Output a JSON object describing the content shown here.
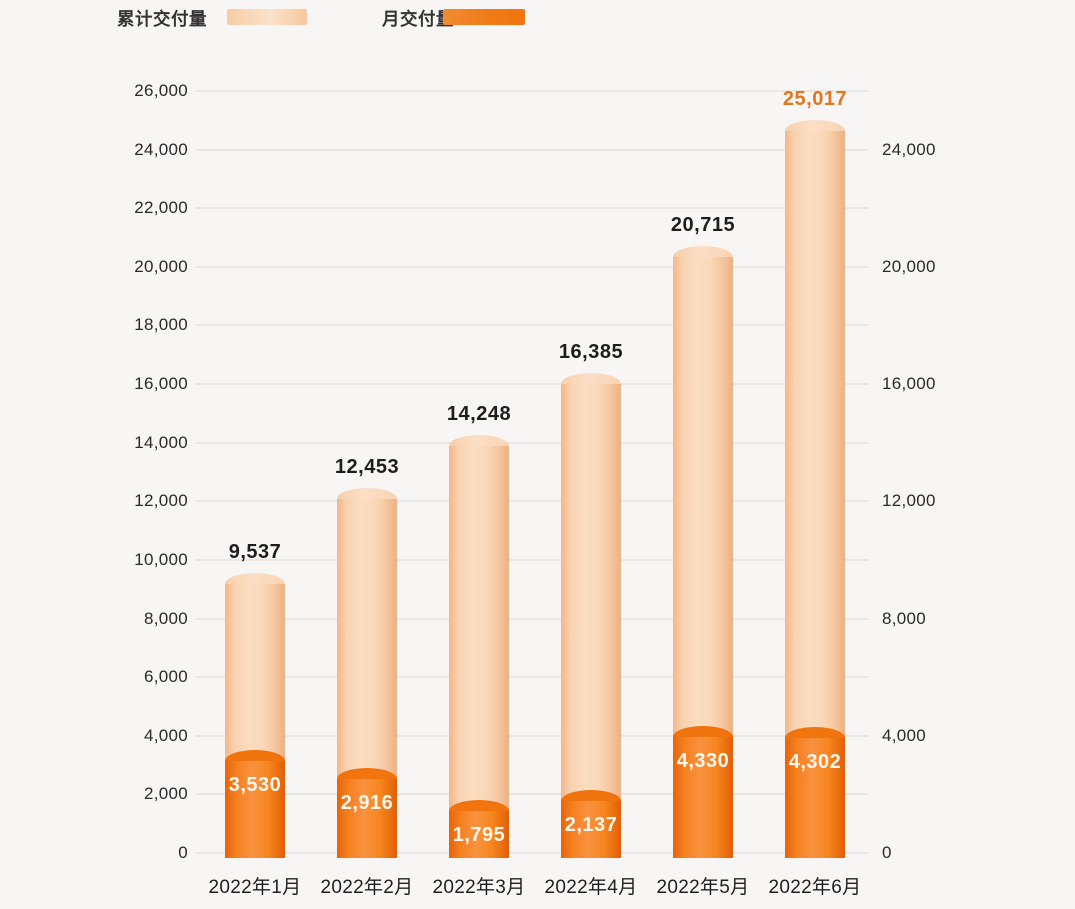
{
  "legend": {
    "items": [
      {
        "label": "累计交付量",
        "swatch": "peach"
      },
      {
        "label": "月交付量",
        "swatch": "orange"
      }
    ]
  },
  "colors": {
    "background": "#f7f6f4",
    "grid_line": "#eae7e3",
    "axis_text": "#2a2a2a",
    "value_label_text": "#1d1d1d",
    "highlight_value_text": "#e2761d",
    "monthly_label_text": "#fdf7ee",
    "cum_edge": "#efb88c",
    "cum_mid": "#fbddc0",
    "cum_cap": "#fcdfc6",
    "mon_edge": "#e6650a",
    "mon_mid": "#f9913f",
    "mon_cap": "#f2740e"
  },
  "chart_data": {
    "type": "bar",
    "title": "",
    "categories": [
      "2022年1月",
      "2022年2月",
      "2022年3月",
      "2022年4月",
      "2022年5月",
      "2022年6月"
    ],
    "series": [
      {
        "name": "累计交付量",
        "values": [
          9537,
          12453,
          14248,
          16385,
          20715,
          25017
        ],
        "labels": [
          "9,537",
          "12,453",
          "14,248",
          "16,385",
          "20,715",
          "25,017"
        ]
      },
      {
        "name": "月交付量",
        "values": [
          3530,
          2916,
          1795,
          2137,
          4330,
          4302
        ],
        "labels": [
          "3,530",
          "2,916",
          "1,795",
          "2,137",
          "4,330",
          "4,302"
        ]
      }
    ],
    "left_axis_ticks": [
      "0",
      "2,000",
      "4,000",
      "6,000",
      "8,000",
      "10,000",
      "12,000",
      "14,000",
      "16,000",
      "18,000",
      "20,000",
      "22,000",
      "24,000",
      "26,000"
    ],
    "right_axis_ticks": [
      "0",
      "4,000",
      "8,000",
      "12,000",
      "16,000",
      "20,000",
      "24,000"
    ],
    "ylim": [
      0,
      26000
    ],
    "grid": true,
    "legend_position": "top",
    "highlighted_value_label": "25,017"
  }
}
